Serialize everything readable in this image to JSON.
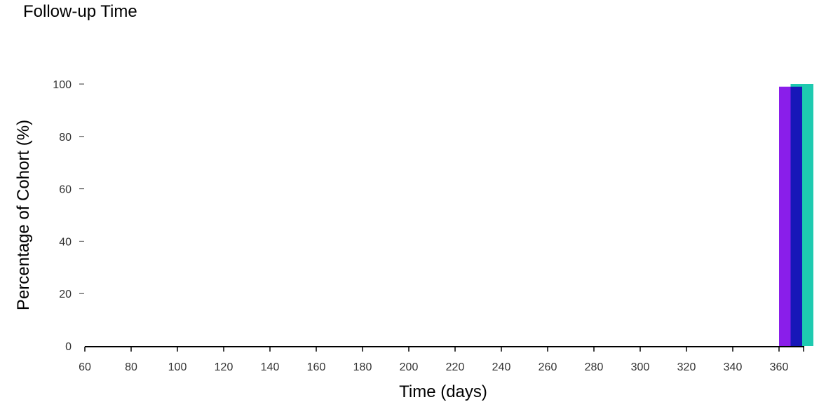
{
  "chart_data": {
    "type": "bar",
    "title": "Follow-up Time",
    "xlabel": "Time (days)",
    "ylabel": "Percentage of Cohort (%)",
    "xlim": [
      60,
      370
    ],
    "ylim": [
      0,
      100
    ],
    "xticks": [
      60,
      80,
      100,
      120,
      140,
      160,
      180,
      200,
      220,
      240,
      260,
      280,
      300,
      320,
      340,
      360
    ],
    "yticks": [
      0,
      20,
      40,
      60,
      80,
      100
    ],
    "grid": false,
    "bars": [
      {
        "color": "#8a1eea",
        "x_start": 360,
        "x_end": 365,
        "value": 99
      },
      {
        "color": "#1ecab0",
        "x_start": 365,
        "x_end": 375,
        "value": 100
      },
      {
        "color": "#1717b8",
        "x_start": 365,
        "x_end": 370,
        "value": 99
      }
    ]
  }
}
